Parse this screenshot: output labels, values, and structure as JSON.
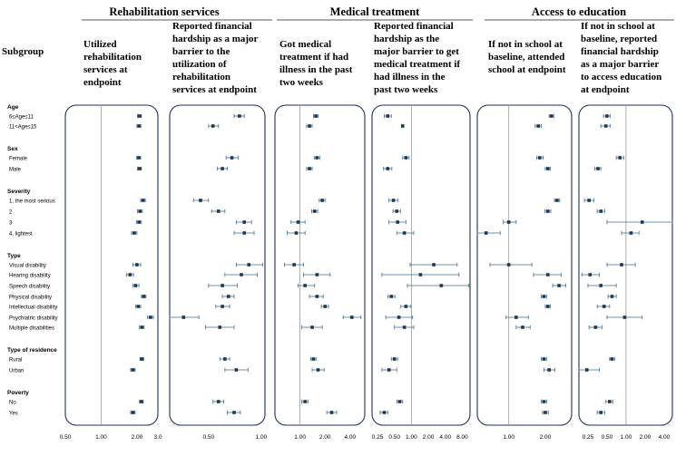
{
  "chart_data": {
    "type": "forest",
    "row_header": "Subgroup",
    "domains": [
      {
        "label": "Rehabilitation services",
        "panels": [
          0,
          1
        ]
      },
      {
        "label": "Medical treatment",
        "panels": [
          2,
          3
        ]
      },
      {
        "label": "Access to education",
        "panels": [
          4,
          5
        ]
      }
    ],
    "groups": [
      {
        "label": "Age",
        "rows": [
          "6≤Age≤11",
          "11<Age≤15"
        ]
      },
      {
        "label": "Sex",
        "rows": [
          "Female",
          "Male"
        ]
      },
      {
        "label": "Severity",
        "rows": [
          "1, the most serious",
          "2",
          "3",
          "4, lightest"
        ]
      },
      {
        "label": "Type",
        "rows": [
          "Visual disability",
          "Hearing disability",
          "Speech disability",
          "Physical disability",
          "Intellectual disability",
          "Psychiatric disability",
          "Multiple disabilities"
        ]
      },
      {
        "label": "Type of residence",
        "rows": [
          "Rural",
          "Urban"
        ]
      },
      {
        "label": "Poverty",
        "rows": [
          "No",
          "Yes"
        ]
      }
    ],
    "panels": [
      {
        "title": [
          "Utilized",
          "rehabilitation",
          "services at",
          "endpoint"
        ],
        "scale": "log",
        "xlim": [
          0.5,
          3.0
        ],
        "ticks": [
          "0.50",
          "1.00",
          "2.00",
          "3.0"
        ],
        "tick_values": [
          0.5,
          1.0,
          2.0,
          3.0
        ],
        "ref": 1.0,
        "estimates": [
          [
            2.1,
            2.02,
            2.18
          ],
          [
            2.08,
            2.0,
            2.16
          ],
          [
            2.07,
            1.99,
            2.15
          ],
          [
            2.1,
            2.02,
            2.18
          ],
          [
            2.25,
            2.15,
            2.35
          ],
          [
            2.12,
            2.02,
            2.22
          ],
          [
            2.08,
            1.98,
            2.18
          ],
          [
            1.9,
            1.8,
            2.0
          ],
          [
            2.0,
            1.85,
            2.15
          ],
          [
            1.75,
            1.63,
            1.87
          ],
          [
            1.95,
            1.85,
            2.08
          ],
          [
            2.28,
            2.18,
            2.38
          ],
          [
            2.05,
            1.95,
            2.15
          ],
          [
            2.6,
            2.45,
            2.75
          ],
          [
            2.2,
            2.1,
            2.3
          ],
          [
            2.2,
            2.12,
            2.28
          ],
          [
            1.85,
            1.77,
            1.93
          ],
          [
            2.18,
            2.1,
            2.26
          ],
          [
            1.85,
            1.77,
            1.93
          ]
        ]
      },
      {
        "title": [
          "Reported financial",
          "hardship as a major",
          "barrier to the",
          "utilization of",
          "rehabilitation",
          "services at endpoint"
        ],
        "scale": "log",
        "xlim": [
          0.3,
          1.05
        ],
        "ticks": [
          "0.50",
          "1.00"
        ],
        "tick_values": [
          0.5,
          1.0
        ],
        "estimates": [
          [
            0.75,
            0.7,
            0.8
          ],
          [
            0.53,
            0.5,
            0.57
          ],
          [
            0.68,
            0.63,
            0.74
          ],
          [
            0.6,
            0.56,
            0.64
          ],
          [
            0.45,
            0.41,
            0.5
          ],
          [
            0.57,
            0.52,
            0.62
          ],
          [
            0.8,
            0.72,
            0.88
          ],
          [
            0.8,
            0.7,
            0.91
          ],
          [
            0.85,
            0.72,
            1.02
          ],
          [
            0.77,
            0.62,
            0.95
          ],
          [
            0.6,
            0.5,
            0.73
          ],
          [
            0.65,
            0.6,
            0.7
          ],
          [
            0.6,
            0.55,
            0.66
          ],
          [
            0.36,
            0.3,
            0.44
          ],
          [
            0.58,
            0.48,
            0.7
          ],
          [
            0.62,
            0.58,
            0.66
          ],
          [
            0.72,
            0.62,
            0.84
          ],
          [
            0.57,
            0.53,
            0.61
          ],
          [
            0.7,
            0.64,
            0.76
          ]
        ]
      },
      {
        "title": [
          "Got medical",
          "treatment if had",
          "illness in the past",
          "two weeks"
        ],
        "scale": "log",
        "xlim": [
          0.5,
          6.0
        ],
        "ticks": [
          "1.00",
          "2.00",
          "4.00"
        ],
        "tick_values": [
          1.0,
          2.0,
          4.0
        ],
        "ref": 1.0,
        "estimates": [
          [
            1.55,
            1.45,
            1.66
          ],
          [
            1.3,
            1.2,
            1.4
          ],
          [
            1.6,
            1.48,
            1.73
          ],
          [
            1.3,
            1.2,
            1.4
          ],
          [
            1.85,
            1.7,
            2.0
          ],
          [
            1.5,
            1.38,
            1.63
          ],
          [
            0.95,
            0.78,
            1.15
          ],
          [
            0.9,
            0.7,
            1.15
          ],
          [
            0.85,
            0.65,
            1.1
          ],
          [
            1.6,
            1.1,
            2.3
          ],
          [
            1.15,
            0.95,
            1.5
          ],
          [
            1.6,
            1.3,
            1.9
          ],
          [
            2.0,
            1.8,
            2.2
          ],
          [
            4.2,
            3.3,
            5.4
          ],
          [
            1.4,
            1.05,
            1.85
          ],
          [
            1.45,
            1.35,
            1.56
          ],
          [
            1.65,
            1.4,
            1.95
          ],
          [
            1.15,
            1.05,
            1.25
          ],
          [
            2.4,
            2.1,
            2.75
          ]
        ]
      },
      {
        "title": [
          "Reported financial",
          "hardship as the",
          "major barrier to get",
          "medical treatment if",
          "had illness in the",
          "past two weeks"
        ],
        "scale": "log",
        "xlim": [
          0.2,
          11.0
        ],
        "ticks": [
          "0.25",
          "0.50",
          "1.00",
          "2.00",
          "4.00",
          "8.00"
        ],
        "tick_values": [
          0.25,
          0.5,
          1.0,
          2.0,
          4.0,
          8.0
        ],
        "ref": 1.0,
        "estimates": [
          [
            0.38,
            0.33,
            0.44
          ],
          [
            0.7,
            0.67,
            0.73
          ],
          [
            0.8,
            0.7,
            0.91
          ],
          [
            0.38,
            0.32,
            0.45
          ],
          [
            0.48,
            0.4,
            0.58
          ],
          [
            0.55,
            0.47,
            0.64
          ],
          [
            0.57,
            0.4,
            0.8
          ],
          [
            0.75,
            0.55,
            1.1
          ],
          [
            2.5,
            0.95,
            6.5
          ],
          [
            1.45,
            0.3,
            7.0
          ],
          [
            3.4,
            0.85,
            10.5
          ],
          [
            0.44,
            0.38,
            0.51
          ],
          [
            0.8,
            0.65,
            0.98
          ],
          [
            0.6,
            0.35,
            1.05
          ],
          [
            0.75,
            0.5,
            1.1
          ],
          [
            0.5,
            0.44,
            0.57
          ],
          [
            0.4,
            0.3,
            0.55
          ],
          [
            0.62,
            0.55,
            0.7
          ],
          [
            0.33,
            0.28,
            0.38
          ]
        ]
      },
      {
        "title": [
          "If not in school at",
          "baseline, attended",
          "school at endpoint"
        ],
        "scale": "log",
        "xlim": [
          0.55,
          3.3
        ],
        "ticks": [
          "1.00",
          "2.00"
        ],
        "tick_values": [
          1.0,
          2.0
        ],
        "ref": 1.0,
        "estimates": [
          [
            2.25,
            2.15,
            2.35
          ],
          [
            1.75,
            1.65,
            1.85
          ],
          [
            1.8,
            1.7,
            1.92
          ],
          [
            2.1,
            2.0,
            2.2
          ],
          [
            2.5,
            2.38,
            2.63
          ],
          [
            2.1,
            1.98,
            2.22
          ],
          [
            1.0,
            0.9,
            1.15
          ],
          [
            0.65,
            0.55,
            0.85
          ],
          [
            1.0,
            0.7,
            1.55
          ],
          [
            2.1,
            1.6,
            2.7
          ],
          [
            2.6,
            2.3,
            2.95
          ],
          [
            1.95,
            1.85,
            2.05
          ],
          [
            2.1,
            2.0,
            2.2
          ],
          [
            1.15,
            0.95,
            1.45
          ],
          [
            1.3,
            1.15,
            1.5
          ],
          [
            1.95,
            1.85,
            2.05
          ],
          [
            2.15,
            1.95,
            2.4
          ],
          [
            1.95,
            1.85,
            2.05
          ],
          [
            2.0,
            1.9,
            2.12
          ]
        ]
      },
      {
        "title": [
          "If not in school at",
          "baseline, reported",
          "financial hardship",
          "as a major barrier",
          "to access education",
          "at endpoint"
        ],
        "scale": "log",
        "xlim": [
          0.18,
          5.4
        ],
        "ticks": [
          "0.25",
          "0.50",
          "1.00",
          "2.00",
          "4.00"
        ],
        "tick_values": [
          0.25,
          0.5,
          1.0,
          2.0,
          4.0
        ],
        "ref": 1.0,
        "estimates": [
          [
            0.5,
            0.44,
            0.56
          ],
          [
            0.48,
            0.4,
            0.56
          ],
          [
            0.8,
            0.7,
            0.92
          ],
          [
            0.36,
            0.32,
            0.4
          ],
          [
            0.26,
            0.22,
            0.31
          ],
          [
            0.4,
            0.35,
            0.46
          ],
          [
            1.8,
            0.5,
            5.4
          ],
          [
            1.2,
            0.85,
            1.6
          ],
          [
            0.85,
            0.5,
            1.4
          ],
          [
            0.27,
            0.2,
            0.38
          ],
          [
            0.4,
            0.25,
            0.7
          ],
          [
            0.6,
            0.52,
            0.7
          ],
          [
            0.45,
            0.35,
            0.55
          ],
          [
            0.95,
            0.5,
            1.8
          ],
          [
            0.33,
            0.26,
            0.42
          ],
          [
            0.6,
            0.55,
            0.66
          ],
          [
            0.24,
            0.15,
            0.38
          ],
          [
            0.55,
            0.48,
            0.62
          ],
          [
            0.4,
            0.35,
            0.46
          ]
        ]
      }
    ]
  }
}
